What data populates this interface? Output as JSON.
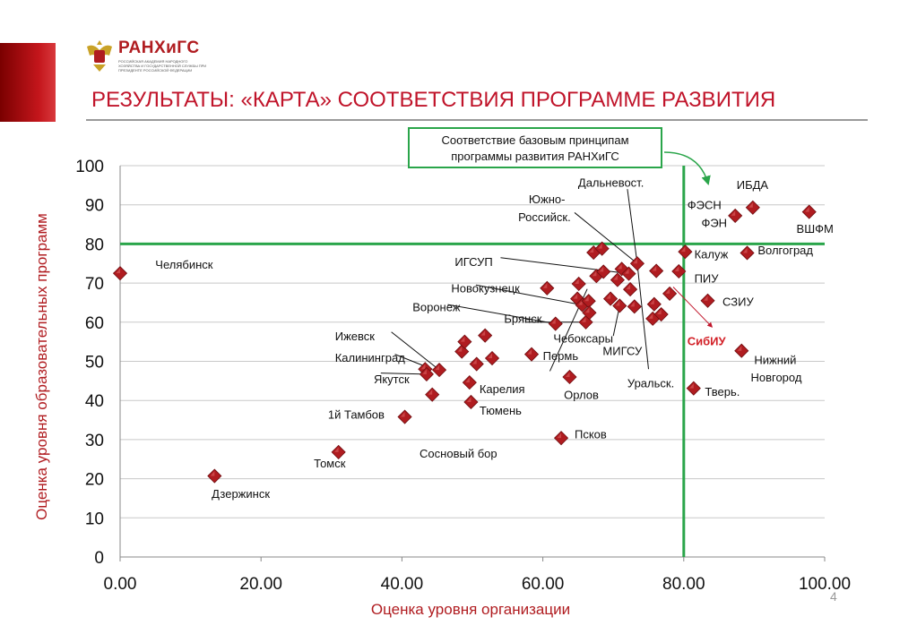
{
  "header": {
    "logo_name": "РАНХиГС",
    "logo_subtitle": "РОССИЙСКАЯ АКАДЕМИЯ НАРОДНОГО ХОЗЯЙСТВА И ГОСУДАРСТВЕННОЙ СЛУЖБЫ ПРИ ПРЕЗИДЕНТЕ РОССИЙСКОЙ ФЕДЕРАЦИИ",
    "title": "РЕЗУЛЬТАТЫ: «КАРТА» СООТВЕТСТВИЯ ПРОГРАММЕ РАЗВИТИЯ",
    "page_number": "4"
  },
  "callout": {
    "line1": "Соответствие базовым принципам",
    "line2": "программы развития РАНХиГС"
  },
  "colors": {
    "accent": "#c0142a",
    "threshold": "#2aa54a",
    "marker": "#b01c20"
  },
  "chart_data": {
    "type": "scatter",
    "xlabel": "Оценка уровня организации",
    "ylabel": "Оценка уровня образовательных программ",
    "xlim": [
      0,
      100
    ],
    "ylim": [
      0,
      100
    ],
    "x_ticks": [
      "0.00",
      "20.00",
      "40.00",
      "60.00",
      "80.00",
      "100.00"
    ],
    "y_ticks": [
      "0",
      "10",
      "20",
      "30",
      "40",
      "50",
      "60",
      "70",
      "80",
      "90",
      "100"
    ],
    "grid": "horizontal",
    "thresholds": {
      "x": 80,
      "y": 80
    },
    "points": [
      {
        "x": 0.0,
        "y": 72.5
      },
      {
        "x": 13.4,
        "y": 20.7
      },
      {
        "x": 31.0,
        "y": 26.8
      },
      {
        "x": 40.4,
        "y": 35.8
      },
      {
        "x": 43.3,
        "y": 48.0
      },
      {
        "x": 43.5,
        "y": 46.7
      },
      {
        "x": 44.3,
        "y": 41.5
      },
      {
        "x": 45.3,
        "y": 47.8
      },
      {
        "x": 48.5,
        "y": 52.5
      },
      {
        "x": 48.9,
        "y": 55.0
      },
      {
        "x": 49.6,
        "y": 44.6
      },
      {
        "x": 49.8,
        "y": 39.6
      },
      {
        "x": 50.6,
        "y": 49.3
      },
      {
        "x": 51.8,
        "y": 56.6
      },
      {
        "x": 52.8,
        "y": 50.8
      },
      {
        "x": 58.4,
        "y": 51.8
      },
      {
        "x": 60.6,
        "y": 68.7
      },
      {
        "x": 61.8,
        "y": 59.6
      },
      {
        "x": 62.6,
        "y": 30.4
      },
      {
        "x": 63.8,
        "y": 46.0
      },
      {
        "x": 64.9,
        "y": 66.0
      },
      {
        "x": 65.1,
        "y": 69.8
      },
      {
        "x": 65.6,
        "y": 64.4
      },
      {
        "x": 66.1,
        "y": 60.0
      },
      {
        "x": 66.5,
        "y": 65.4
      },
      {
        "x": 66.6,
        "y": 62.4
      },
      {
        "x": 67.2,
        "y": 77.8
      },
      {
        "x": 67.6,
        "y": 71.8
      },
      {
        "x": 68.4,
        "y": 78.8
      },
      {
        "x": 68.6,
        "y": 72.9
      },
      {
        "x": 69.6,
        "y": 66.0
      },
      {
        "x": 70.6,
        "y": 70.8
      },
      {
        "x": 70.9,
        "y": 64.2
      },
      {
        "x": 71.2,
        "y": 73.6
      },
      {
        "x": 72.2,
        "y": 72.4
      },
      {
        "x": 72.4,
        "y": 68.4
      },
      {
        "x": 73.0,
        "y": 64.0
      },
      {
        "x": 73.4,
        "y": 75.0
      },
      {
        "x": 75.6,
        "y": 60.9
      },
      {
        "x": 75.8,
        "y": 64.6
      },
      {
        "x": 76.1,
        "y": 73.1
      },
      {
        "x": 76.8,
        "y": 62.0
      },
      {
        "x": 78.0,
        "y": 67.3
      },
      {
        "x": 79.3,
        "y": 73.0
      },
      {
        "x": 80.2,
        "y": 78.0
      },
      {
        "x": 81.4,
        "y": 43.1
      },
      {
        "x": 83.4,
        "y": 65.5
      },
      {
        "x": 87.3,
        "y": 87.2
      },
      {
        "x": 88.2,
        "y": 52.7
      },
      {
        "x": 89.0,
        "y": 77.7
      },
      {
        "x": 89.8,
        "y": 89.3
      },
      {
        "x": 97.8,
        "y": 88.2
      }
    ],
    "annotations": [
      {
        "text": "Челябинск",
        "x": 5.0,
        "y": 74.8
      },
      {
        "text": "Дзержинск",
        "x": 13.0,
        "y": 16.2
      },
      {
        "text": "Томск",
        "x": 27.5,
        "y": 24.0
      },
      {
        "text": "1й  Тамбов",
        "x": 29.5,
        "y": 36.5
      },
      {
        "text": "Якутск",
        "x": 36.0,
        "y": 45.5
      },
      {
        "text": "Калининград",
        "x": 30.5,
        "y": 51.0
      },
      {
        "text": "Ижевск",
        "x": 30.5,
        "y": 56.5
      },
      {
        "text": "Воронеж",
        "x": 41.5,
        "y": 64.0
      },
      {
        "text": "Новокузнецк",
        "x": 47.0,
        "y": 68.8
      },
      {
        "text": "ИГСУП",
        "x": 47.5,
        "y": 75.5
      },
      {
        "text": "Южно-",
        "x": 58.0,
        "y": 91.5
      },
      {
        "text": "Российск.",
        "x": 56.5,
        "y": 87.0
      },
      {
        "text": "Дальневост.",
        "x": 65.0,
        "y": 95.8
      },
      {
        "text": "Брянск",
        "x": 54.5,
        "y": 61.0
      },
      {
        "text": "Чебоксары",
        "x": 61.5,
        "y": 56.0
      },
      {
        "text": "МИГСУ",
        "x": 68.5,
        "y": 52.8
      },
      {
        "text": "Пермь",
        "x": 60.0,
        "y": 51.5
      },
      {
        "text": "Карелия",
        "x": 51.0,
        "y": 43.0
      },
      {
        "text": "Орлов",
        "x": 63.0,
        "y": 41.5
      },
      {
        "text": "Уральск.",
        "x": 72.0,
        "y": 44.5
      },
      {
        "text": "Тюмень",
        "x": 51.0,
        "y": 37.5
      },
      {
        "text": "Псков",
        "x": 64.5,
        "y": 31.5
      },
      {
        "text": "Сосновый бор",
        "x": 42.5,
        "y": 26.5
      },
      {
        "text": "ФЭСН",
        "x": 80.5,
        "y": 90.0
      },
      {
        "text": "ИБДА",
        "x": 87.5,
        "y": 95.2
      },
      {
        "text": "ФЭН",
        "x": 82.5,
        "y": 85.5
      },
      {
        "text": "ВШФМ",
        "x": 96.0,
        "y": 84.0
      },
      {
        "text": "Калуж",
        "x": 81.5,
        "y": 77.5
      },
      {
        "text": "Волгоград",
        "x": 90.5,
        "y": 78.5
      },
      {
        "text": "ПИУ",
        "x": 81.5,
        "y": 71.3
      },
      {
        "text": "СЗИУ",
        "x": 85.5,
        "y": 65.3
      },
      {
        "text": "СибИУ",
        "x": 80.5,
        "y": 55.3,
        "highlight": true
      },
      {
        "text": "Нижний",
        "x": 90.0,
        "y": 50.5
      },
      {
        "text": "Новгород",
        "x": 89.5,
        "y": 46.0
      },
      {
        "text": "Тверь.",
        "x": 83.0,
        "y": 42.3
      }
    ],
    "leader_lines": [
      [
        [
          61,
          47.5
        ],
        [
          66.3,
          68.5
        ]
      ],
      [
        [
          54,
          76.5
        ],
        [
          72.2,
          72.4
        ]
      ],
      [
        [
          50.5,
          69.5
        ],
        [
          65.6,
          64.4
        ]
      ],
      [
        [
          46.5,
          64.5
        ],
        [
          61.8,
          59.6
        ]
      ],
      [
        [
          57.5,
          60.0
        ],
        [
          66.1,
          60.0
        ]
      ],
      [
        [
          70.0,
          56.5
        ],
        [
          70.9,
          64.2
        ]
      ],
      [
        [
          38.5,
          57.5
        ],
        [
          45.3,
          47.8
        ]
      ],
      [
        [
          39.0,
          51.8
        ],
        [
          44.3,
          48.0
        ]
      ],
      [
        [
          37.0,
          47.0
        ],
        [
          43.5,
          46.7
        ]
      ],
      [
        [
          75.0,
          48.0
        ],
        [
          73.4,
          75.0
        ]
      ],
      [
        [
          64.5,
          88.0
        ],
        [
          73.4,
          75.0
        ]
      ],
      [
        [
          72.0,
          94.0
        ],
        [
          73.4,
          75.0
        ]
      ],
      [
        [
          78.5,
          69.0
        ],
        [
          84.0,
          58.8
        ]
      ]
    ]
  }
}
